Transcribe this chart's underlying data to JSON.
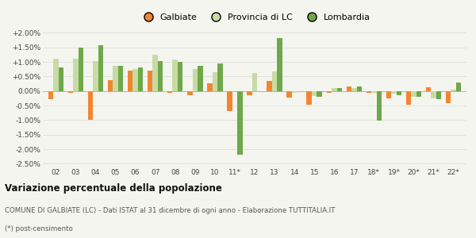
{
  "years": [
    "02",
    "03",
    "04",
    "05",
    "06",
    "07",
    "08",
    "09",
    "10",
    "11*",
    "12",
    "13",
    "14",
    "15",
    "16",
    "17",
    "18*",
    "19*",
    "20*",
    "21*",
    "22*"
  ],
  "galbiate": [
    -0.28,
    -0.07,
    -0.98,
    0.38,
    0.7,
    0.7,
    -0.07,
    -0.13,
    0.28,
    -0.7,
    -0.13,
    0.35,
    -0.22,
    -0.48,
    -0.05,
    0.16,
    -0.07,
    -0.25,
    -0.48,
    0.13,
    -0.42
  ],
  "provincia_lc": [
    1.1,
    1.12,
    1.02,
    0.88,
    0.75,
    1.25,
    1.08,
    0.75,
    0.65,
    0.0,
    0.63,
    0.68,
    -0.05,
    -0.18,
    0.1,
    0.1,
    -0.05,
    -0.1,
    -0.2,
    -0.25,
    0.05
  ],
  "lombardia": [
    0.82,
    1.5,
    1.58,
    0.88,
    0.82,
    1.02,
    1.0,
    0.88,
    0.95,
    -2.18,
    0.0,
    1.82,
    0.0,
    -0.2,
    0.1,
    0.15,
    -1.02,
    -0.15,
    -0.2,
    -0.28,
    0.3
  ],
  "galbiate_color": "#f28630",
  "provincia_lc_color": "#c8dba4",
  "lombardia_color": "#6fa84a",
  "title": "Variazione percentuale della popolazione",
  "footnote1": "COMUNE DI GALBIATE (LC) - Dati ISTAT al 31 dicembre di ogni anno - Elaborazione TUTTITALIA.IT",
  "footnote2": "(*) post-censimento",
  "ylim": [
    -2.6,
    2.15
  ],
  "yticks": [
    -2.5,
    -2.0,
    -1.5,
    -1.0,
    -0.5,
    0.0,
    0.5,
    1.0,
    1.5,
    2.0
  ],
  "bg_color": "#f5f5f0",
  "grid_color": "#d8d8d8",
  "text_color": "#444444"
}
